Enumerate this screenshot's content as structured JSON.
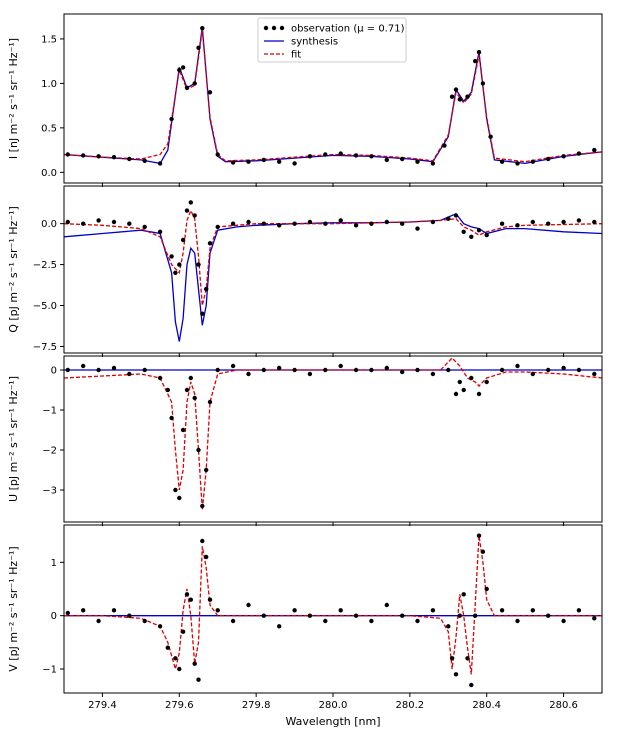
{
  "colors": {
    "observation": "#000000",
    "synthesis": "#0000cc",
    "fit": "#dd0000"
  },
  "chart_data": {
    "type": "line",
    "xlabel": "Wavelength [nm]",
    "xlim": [
      279.3,
      280.7
    ],
    "xticks": [
      "279.4",
      "279.6",
      "279.8",
      "280.0",
      "280.2",
      "280.4",
      "280.6"
    ],
    "legend": {
      "placement": "top-center",
      "entries": [
        "observation (μ = 0.71)",
        "synthesis",
        "fit"
      ]
    },
    "panels": [
      {
        "id": "I",
        "ylabel": "I  [nJ m⁻² s⁻¹ sr⁻¹ Hz⁻¹]",
        "ylim": [
          -0.12,
          1.78
        ],
        "yticks": [
          "0.0",
          "0.5",
          "1.0",
          "1.5"
        ],
        "series": [
          {
            "name": "synthesis",
            "x": [
              279.3,
              279.4,
              279.5,
              279.55,
              279.57,
              279.6,
              279.62,
              279.64,
              279.66,
              279.68,
              279.7,
              279.72,
              279.8,
              279.9,
              280.0,
              280.1,
              280.2,
              280.26,
              280.3,
              280.32,
              280.34,
              280.36,
              280.38,
              280.4,
              280.42,
              280.5,
              280.6,
              280.7
            ],
            "y": [
              0.2,
              0.17,
              0.14,
              0.1,
              0.25,
              1.18,
              0.95,
              1.0,
              1.63,
              0.6,
              0.18,
              0.12,
              0.13,
              0.16,
              0.19,
              0.18,
              0.15,
              0.12,
              0.4,
              0.93,
              0.8,
              0.9,
              1.35,
              0.6,
              0.14,
              0.1,
              0.18,
              0.23
            ]
          },
          {
            "name": "fit",
            "x": [
              279.3,
              279.4,
              279.5,
              279.55,
              279.57,
              279.6,
              279.62,
              279.64,
              279.66,
              279.68,
              279.7,
              279.72,
              279.8,
              279.9,
              280.0,
              280.1,
              280.2,
              280.26,
              280.3,
              280.32,
              280.34,
              280.36,
              280.38,
              280.4,
              280.42,
              280.5,
              280.6,
              280.7
            ],
            "y": [
              0.2,
              0.17,
              0.15,
              0.2,
              0.32,
              1.15,
              0.93,
              0.98,
              1.6,
              0.62,
              0.2,
              0.13,
              0.14,
              0.17,
              0.2,
              0.19,
              0.16,
              0.13,
              0.42,
              0.9,
              0.78,
              0.88,
              1.32,
              0.62,
              0.16,
              0.12,
              0.19,
              0.23
            ]
          },
          {
            "name": "observation (μ = 0.71)",
            "x": [
              279.31,
              279.35,
              279.39,
              279.43,
              279.47,
              279.51,
              279.55,
              279.58,
              279.6,
              279.61,
              279.62,
              279.64,
              279.65,
              279.66,
              279.68,
              279.7,
              279.74,
              279.78,
              279.82,
              279.86,
              279.9,
              279.94,
              279.98,
              280.02,
              280.06,
              280.1,
              280.14,
              280.18,
              280.22,
              280.26,
              280.29,
              280.31,
              280.32,
              280.33,
              280.35,
              280.37,
              280.38,
              280.39,
              280.41,
              280.44,
              280.48,
              280.52,
              280.56,
              280.6,
              280.64,
              280.68
            ],
            "y": [
              0.2,
              0.19,
              0.18,
              0.17,
              0.15,
              0.13,
              0.1,
              0.6,
              1.15,
              1.18,
              0.95,
              1.0,
              1.4,
              1.62,
              0.9,
              0.2,
              0.11,
              0.12,
              0.14,
              0.12,
              0.1,
              0.18,
              0.2,
              0.21,
              0.19,
              0.18,
              0.14,
              0.15,
              0.12,
              0.1,
              0.3,
              0.85,
              0.93,
              0.82,
              0.85,
              1.25,
              1.35,
              1.0,
              0.4,
              0.12,
              0.1,
              0.12,
              0.15,
              0.18,
              0.21,
              0.25
            ]
          }
        ]
      },
      {
        "id": "Q",
        "ylabel": "Q  [pJ m⁻² s⁻¹ sr⁻¹ Hz⁻¹]",
        "ylim": [
          -7.9,
          2.3
        ],
        "yticks": [
          "0.0",
          "−2.5",
          "−5.0",
          "−7.5"
        ],
        "series": [
          {
            "name": "synthesis",
            "x": [
              279.3,
              279.4,
              279.5,
              279.55,
              279.58,
              279.59,
              279.6,
              279.61,
              279.62,
              279.63,
              279.64,
              279.65,
              279.66,
              279.67,
              279.68,
              279.7,
              279.75,
              279.8,
              279.9,
              280.0,
              280.1,
              280.2,
              280.28,
              280.32,
              280.34,
              280.36,
              280.38,
              280.4,
              280.45,
              280.5,
              280.6,
              280.7
            ],
            "y": [
              -0.8,
              -0.6,
              -0.4,
              -0.6,
              -3.0,
              -6.0,
              -7.2,
              -5.8,
              -2.5,
              -1.5,
              -1.8,
              -4.0,
              -6.2,
              -5.0,
              -1.8,
              -0.4,
              -0.2,
              -0.1,
              0.0,
              0.05,
              0.05,
              0.1,
              0.2,
              0.6,
              0.0,
              -0.2,
              -0.3,
              -0.6,
              -0.3,
              -0.3,
              -0.5,
              -0.6
            ]
          },
          {
            "name": "fit",
            "x": [
              279.3,
              279.4,
              279.5,
              279.55,
              279.58,
              279.6,
              279.61,
              279.62,
              279.63,
              279.64,
              279.65,
              279.66,
              279.67,
              279.68,
              279.7,
              279.75,
              279.8,
              279.9,
              280.0,
              280.1,
              280.2,
              280.28,
              280.32,
              280.34,
              280.36,
              280.38,
              280.4,
              280.45,
              280.5,
              280.6,
              280.7
            ],
            "y": [
              0.0,
              -0.1,
              -0.3,
              -0.8,
              -2.5,
              -3.0,
              -1.8,
              0.2,
              0.8,
              0.3,
              -2.0,
              -5.0,
              -4.0,
              -1.5,
              -0.2,
              -0.1,
              0.0,
              0.0,
              0.0,
              0.05,
              0.1,
              0.2,
              0.3,
              -0.2,
              -0.4,
              -0.7,
              -0.5,
              -0.2,
              -0.1,
              -0.05,
              0.0
            ]
          },
          {
            "name": "observation (μ = 0.71)",
            "x": [
              279.31,
              279.35,
              279.39,
              279.43,
              279.47,
              279.51,
              279.55,
              279.58,
              279.59,
              279.6,
              279.61,
              279.62,
              279.63,
              279.64,
              279.65,
              279.66,
              279.67,
              279.68,
              279.7,
              279.74,
              279.78,
              279.82,
              279.86,
              279.9,
              279.94,
              279.98,
              280.02,
              280.06,
              280.1,
              280.14,
              280.18,
              280.22,
              280.26,
              280.3,
              280.32,
              280.34,
              280.36,
              280.38,
              280.4,
              280.44,
              280.48,
              280.52,
              280.56,
              280.6,
              280.64,
              280.68
            ],
            "y": [
              0.1,
              0.0,
              0.2,
              0.1,
              0.0,
              -0.2,
              -0.5,
              -2.0,
              -3.0,
              -2.5,
              -1.0,
              0.8,
              1.3,
              0.5,
              -2.5,
              -5.5,
              -4.0,
              -1.2,
              -0.2,
              0.0,
              0.1,
              0.0,
              -0.1,
              0.0,
              0.1,
              0.0,
              0.2,
              -0.1,
              0.0,
              0.1,
              0.0,
              -0.3,
              0.1,
              0.3,
              0.5,
              -0.5,
              -0.8,
              -0.4,
              -0.7,
              0.0,
              -0.1,
              0.1,
              0.0,
              0.1,
              0.2,
              0.1
            ]
          }
        ]
      },
      {
        "id": "U",
        "ylabel": "U  [pJ m⁻² s⁻¹ sr⁻¹ Hz⁻¹]",
        "ylim": [
          -3.8,
          0.35
        ],
        "yticks": [
          "0",
          "−1",
          "−2",
          "−3"
        ],
        "series": [
          {
            "name": "synthesis",
            "x": [
              279.3,
              280.7
            ],
            "y": [
              0.0,
              0.0
            ]
          },
          {
            "name": "fit",
            "x": [
              279.3,
              279.4,
              279.5,
              279.55,
              279.58,
              279.59,
              279.6,
              279.61,
              279.62,
              279.63,
              279.64,
              279.65,
              279.66,
              279.67,
              279.68,
              279.7,
              279.75,
              279.8,
              279.9,
              280.0,
              280.1,
              280.2,
              280.28,
              280.31,
              280.33,
              280.35,
              280.37,
              280.38,
              280.4,
              280.45,
              280.5,
              280.6,
              280.7
            ],
            "y": [
              -0.2,
              -0.15,
              -0.1,
              -0.2,
              -0.8,
              -2.0,
              -3.0,
              -2.5,
              -0.8,
              -0.3,
              -0.6,
              -2.0,
              -3.5,
              -2.5,
              -0.8,
              -0.1,
              0.0,
              0.0,
              0.0,
              0.0,
              0.0,
              0.0,
              0.0,
              0.3,
              0.1,
              -0.2,
              -0.3,
              -0.4,
              -0.2,
              -0.05,
              -0.05,
              -0.1,
              -0.2
            ]
          },
          {
            "name": "observation (μ = 0.71)",
            "x": [
              279.31,
              279.35,
              279.39,
              279.43,
              279.47,
              279.51,
              279.55,
              279.57,
              279.58,
              279.59,
              279.6,
              279.61,
              279.62,
              279.63,
              279.64,
              279.65,
              279.66,
              279.67,
              279.68,
              279.7,
              279.74,
              279.78,
              279.82,
              279.86,
              279.9,
              279.94,
              279.98,
              280.02,
              280.06,
              280.1,
              280.14,
              280.18,
              280.22,
              280.26,
              280.3,
              280.32,
              280.33,
              280.34,
              280.36,
              280.38,
              280.4,
              280.44,
              280.48,
              280.52,
              280.56,
              280.6,
              280.64,
              280.68
            ],
            "y": [
              0.0,
              0.1,
              0.0,
              0.05,
              -0.1,
              0.0,
              -0.2,
              -0.5,
              -1.2,
              -3.0,
              -3.2,
              -1.5,
              -0.5,
              -0.2,
              -0.7,
              -2.0,
              -3.4,
              -2.5,
              -0.8,
              0.0,
              0.1,
              -0.1,
              0.0,
              0.05,
              0.0,
              -0.1,
              0.0,
              0.1,
              0.0,
              0.0,
              0.05,
              -0.05,
              0.0,
              -0.1,
              0.0,
              -0.6,
              -0.3,
              -0.5,
              -0.2,
              -0.6,
              -0.3,
              0.0,
              0.1,
              -0.1,
              0.0,
              0.05,
              0.0,
              -0.1
            ]
          }
        ]
      },
      {
        "id": "V",
        "ylabel": "V  [pJ m⁻² s⁻¹ sr⁻¹ Hz⁻¹]",
        "ylim": [
          -1.45,
          1.7
        ],
        "yticks": [
          "1",
          "0",
          "−1"
        ],
        "series": [
          {
            "name": "synthesis",
            "x": [
              279.3,
              280.7
            ],
            "y": [
              0.0,
              0.0
            ]
          },
          {
            "name": "fit",
            "x": [
              279.3,
              279.4,
              279.5,
              279.55,
              279.57,
              279.59,
              279.6,
              279.61,
              279.62,
              279.63,
              279.64,
              279.65,
              279.66,
              279.67,
              279.68,
              279.7,
              279.75,
              279.8,
              279.9,
              280.0,
              280.1,
              280.2,
              280.28,
              280.3,
              280.31,
              280.32,
              280.33,
              280.34,
              280.35,
              280.36,
              280.37,
              280.38,
              280.39,
              280.4,
              280.42,
              280.5,
              280.6,
              280.7
            ],
            "y": [
              0.0,
              0.0,
              -0.05,
              -0.2,
              -0.5,
              -1.0,
              -0.7,
              0.1,
              0.5,
              0.0,
              -0.9,
              -0.5,
              1.3,
              0.9,
              0.2,
              0.0,
              0.0,
              0.0,
              0.0,
              0.0,
              0.0,
              0.0,
              -0.05,
              -0.3,
              -1.0,
              -0.4,
              0.4,
              0.0,
              -0.6,
              -1.1,
              0.2,
              1.5,
              1.0,
              0.3,
              0.0,
              0.0,
              0.0,
              0.0
            ]
          },
          {
            "name": "observation (μ = 0.71)",
            "x": [
              279.31,
              279.35,
              279.39,
              279.43,
              279.47,
              279.51,
              279.55,
              279.57,
              279.59,
              279.6,
              279.61,
              279.62,
              279.63,
              279.64,
              279.65,
              279.66,
              279.67,
              279.68,
              279.7,
              279.74,
              279.78,
              279.82,
              279.86,
              279.9,
              279.94,
              279.98,
              280.02,
              280.06,
              280.1,
              280.14,
              280.18,
              280.22,
              280.26,
              280.3,
              280.31,
              280.32,
              280.33,
              280.34,
              280.35,
              280.36,
              280.37,
              280.38,
              280.39,
              280.4,
              280.44,
              280.48,
              280.52,
              280.56,
              280.6,
              280.64,
              280.68
            ],
            "y": [
              0.05,
              0.1,
              -0.1,
              0.1,
              0.0,
              -0.1,
              -0.2,
              -0.6,
              -0.8,
              -1.0,
              -0.3,
              0.4,
              0.3,
              -0.9,
              -1.2,
              1.4,
              1.1,
              0.3,
              0.1,
              -0.1,
              0.2,
              0.0,
              -0.2,
              0.1,
              0.0,
              -0.1,
              0.1,
              0.0,
              -0.1,
              0.2,
              0.0,
              -0.1,
              0.1,
              -0.2,
              -0.8,
              -1.1,
              0.0,
              0.4,
              -0.8,
              -1.3,
              0.0,
              1.5,
              1.2,
              0.5,
              0.1,
              -0.1,
              0.1,
              0.0,
              -0.1,
              0.1,
              -0.05
            ]
          }
        ]
      }
    ]
  }
}
